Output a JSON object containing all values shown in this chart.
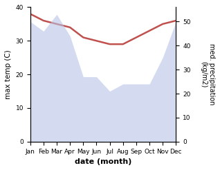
{
  "months": [
    "Jan",
    "Feb",
    "Mar",
    "Apr",
    "May",
    "Jun",
    "Jul",
    "Aug",
    "Sep",
    "Oct",
    "Nov",
    "Dec"
  ],
  "month_indices": [
    0,
    1,
    2,
    3,
    4,
    5,
    6,
    7,
    8,
    9,
    10,
    11
  ],
  "max_temp": [
    38,
    36,
    35,
    34,
    31,
    30,
    29,
    29,
    31,
    33,
    35,
    36
  ],
  "precipitation": [
    50,
    46,
    53,
    44,
    27,
    27,
    21,
    24,
    24,
    24,
    35,
    50
  ],
  "temp_color": "#c0504d",
  "precip_fill_color": "#b8c4e8",
  "title": "",
  "xlabel": "date (month)",
  "ylabel_left": "max temp (C)",
  "ylabel_right": "med. precipitation\n(kg/m2)",
  "ylim_left": [
    0,
    40
  ],
  "ylim_right": [
    0,
    56
  ],
  "yticks_left": [
    0,
    10,
    20,
    30,
    40
  ],
  "yticks_right": [
    0,
    10,
    20,
    30,
    40,
    50
  ],
  "bg_color": "#ffffff",
  "temp_linewidth": 1.8,
  "precip_alpha": 0.6
}
